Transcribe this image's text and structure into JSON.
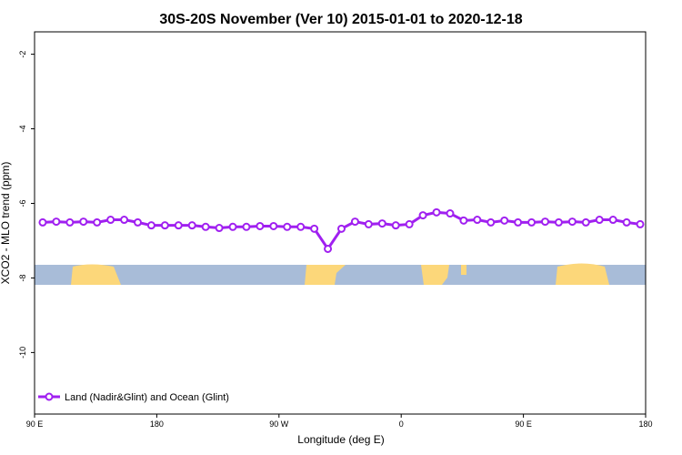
{
  "chart_data": {
    "type": "line",
    "title": "30S-20S November (Ver 10)   2015-01-01 to 2020-12-18",
    "xlabel": "Longitude (deg E)",
    "ylabel": "XCO2 - MLO trend (ppm)",
    "x": [
      96,
      106,
      116,
      126,
      136,
      146,
      156,
      166,
      176,
      186,
      196,
      206,
      216,
      226,
      236,
      246,
      256,
      266,
      276,
      286,
      296,
      306,
      316,
      326,
      336,
      346,
      356,
      366,
      376,
      386,
      396,
      406,
      416,
      426,
      436,
      446,
      456,
      466,
      476,
      486,
      496,
      506,
      516,
      526,
      536
    ],
    "series": [
      {
        "name": "Land (Nadir&Glint) and Ocean (Glint)",
        "color": "#a020f0",
        "values": [
          -6.51,
          -6.49,
          -6.51,
          -6.49,
          -6.51,
          -6.44,
          -6.44,
          -6.51,
          -6.59,
          -6.59,
          -6.59,
          -6.59,
          -6.63,
          -6.66,
          -6.63,
          -6.63,
          -6.61,
          -6.61,
          -6.63,
          -6.63,
          -6.68,
          -7.22,
          -6.68,
          -6.49,
          -6.56,
          -6.54,
          -6.59,
          -6.56,
          -6.32,
          -6.24,
          -6.27,
          -6.46,
          -6.44,
          -6.51,
          -6.46,
          -6.51,
          -6.51,
          -6.49,
          -6.51,
          -6.49,
          -6.51,
          -6.44,
          -6.44,
          -6.51,
          -6.56
        ]
      }
    ],
    "xlim": [
      90,
      540
    ],
    "xticks": [
      {
        "value": 90,
        "label": "90 E"
      },
      180,
      {
        "value": 270,
        "label": "90 W"
      },
      {
        "value": 360,
        "label": "0"
      },
      {
        "value": 450,
        "label": "90 E"
      },
      {
        "value": 540,
        "label": "180"
      }
    ],
    "ylim": [
      -11.65,
      -1.4
    ],
    "yticks": [
      -2,
      -4,
      -6,
      -8,
      -10
    ],
    "legend": "lower left"
  }
}
